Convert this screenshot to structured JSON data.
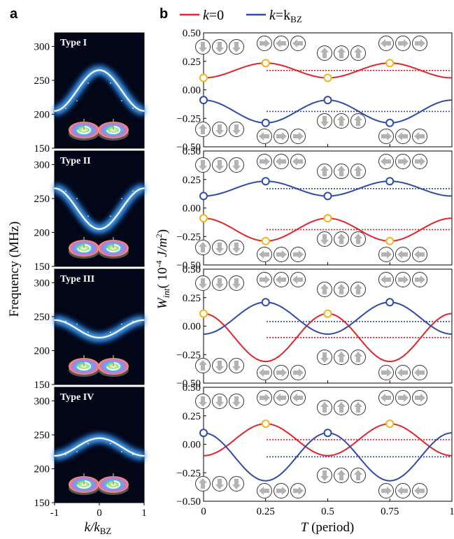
{
  "panel_labels": {
    "a": "a",
    "b": "b"
  },
  "legend": {
    "items": [
      {
        "name_prefix": "k",
        "name_eq": "=0",
        "color": "#e0262b"
      },
      {
        "name_prefix": "k",
        "name_eq": "=k",
        "name_sub": "BZ",
        "color": "#2f4aa8"
      }
    ]
  },
  "colors": {
    "red": "#e0262b",
    "blue": "#2f4aa8",
    "yellow": "#f3b41c",
    "dark_bg": "#020617"
  },
  "chart_data": [
    {
      "type": "heatmap",
      "name": "dispersion-panels",
      "ylabel": "Frequency (MHz)",
      "xlabel_main": "k/k",
      "xlabel_sub": "BZ",
      "xlim": [
        -1,
        1
      ],
      "ylim": [
        150,
        320
      ],
      "xticks": [
        "-1",
        "0",
        "1"
      ],
      "yticks": [
        "150",
        "200",
        "250",
        "300"
      ],
      "panels": [
        {
          "label": "Type I",
          "center": 235,
          "amplitude": 30,
          "x": [
            -1,
            -0.75,
            -0.5,
            -0.25,
            0,
            0.25,
            0.5,
            0.75,
            1
          ],
          "y": [
            205,
            209,
            220,
            246,
            265,
            246,
            220,
            209,
            205
          ]
        },
        {
          "label": "Type II",
          "center": 235,
          "amplitude": -30,
          "x": [
            -1,
            -0.75,
            -0.5,
            -0.25,
            0,
            0.25,
            0.5,
            0.75,
            1
          ],
          "y": [
            265,
            261,
            250,
            224,
            205,
            224,
            250,
            261,
            265
          ]
        },
        {
          "label": "Type III",
          "center": 232,
          "amplitude": -13,
          "x": [
            -1,
            -0.75,
            -0.5,
            -0.25,
            0,
            0.25,
            0.5,
            0.75,
            1
          ],
          "y": [
            245,
            243,
            239,
            227,
            219,
            227,
            239,
            243,
            245
          ]
        },
        {
          "label": "Type IV",
          "center": 232,
          "amplitude": 13,
          "x": [
            -1,
            -0.75,
            -0.5,
            -0.25,
            0,
            0.25,
            0.5,
            0.75,
            1
          ],
          "y": [
            219,
            221,
            225,
            237,
            245,
            237,
            225,
            221,
            219
          ]
        }
      ]
    },
    {
      "type": "line",
      "name": "interaction-energy-panels",
      "ylabel_main": "W",
      "ylabel_sub": "int",
      "ylabel_units": "( 10",
      "ylabel_exp": "-4",
      "ylabel_tail": " J/m",
      "ylabel_tail_exp": "2",
      "ylabel_close": ")",
      "xlabel_main": "T",
      "xlabel_rest": " (period)",
      "xlim": [
        0,
        1
      ],
      "ylim": [
        -0.5,
        0.5
      ],
      "xticks": [
        "0",
        "0.25",
        "0.5",
        "0.75",
        "1"
      ],
      "yticks": [
        "-0.50",
        "-0.25",
        "0.00",
        "0.25",
        "0.50"
      ],
      "panels": [
        {
          "upper": {
            "series": "red",
            "mean": 0.17,
            "amp": 0.065,
            "period": 0.5,
            "phase_min_at": 0
          },
          "lower": {
            "series": "blue",
            "mean": -0.19,
            "amp": 0.1,
            "period": 0.5,
            "phase_min_at": 0.25
          },
          "markers_upper": [
            0,
            0.25,
            0.5,
            0.75
          ],
          "markers_lower": [
            0,
            0.25,
            0.5,
            0.75
          ]
        },
        {
          "upper": {
            "series": "blue",
            "mean": 0.17,
            "amp": 0.065,
            "period": 0.5,
            "phase_min_at": 0
          },
          "lower": {
            "series": "red",
            "mean": -0.19,
            "amp": 0.1,
            "period": 0.5,
            "phase_min_at": 0.25
          },
          "markers_upper": [
            0,
            0.25,
            0.5,
            0.75
          ],
          "markers_lower": [
            0,
            0.25,
            0.5,
            0.75
          ]
        },
        {
          "curveA": {
            "series": "red",
            "mean": -0.1,
            "amp": 0.21,
            "period": 0.5,
            "max_at": 0
          },
          "curveB": {
            "series": "blue",
            "mean": 0.07,
            "amp": 0.14,
            "period": 0.5,
            "max_at": 0.25
          },
          "dotted": [
            {
              "series": "blue",
              "y": 0.04
            },
            {
              "series": "red",
              "y": -0.1
            }
          ]
        },
        {
          "curveA": {
            "series": "red",
            "mean": 0.04,
            "amp": 0.14,
            "period": 0.5,
            "max_at": 0.25
          },
          "curveB": {
            "series": "blue",
            "mean": -0.11,
            "amp": 0.21,
            "period": 0.5,
            "max_at": 0
          },
          "dotted": [
            {
              "series": "red",
              "y": 0.04
            },
            {
              "series": "blue",
              "y": -0.11
            }
          ]
        }
      ]
    }
  ]
}
